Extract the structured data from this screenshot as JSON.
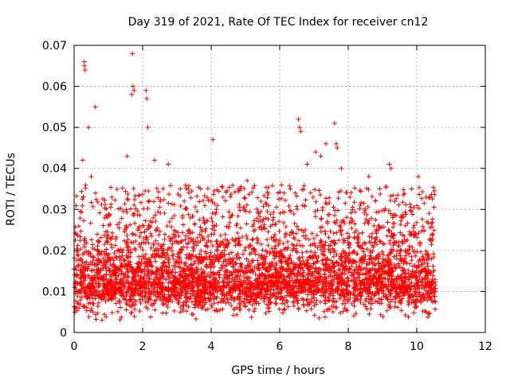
{
  "chart_data": {
    "type": "scatter",
    "title": "Day 319 of 2021, Rate Of TEC Index for receiver cn12",
    "xlabel": "GPS time / hours",
    "ylabel": "ROTI / TECUs",
    "xlim": [
      0,
      12
    ],
    "ylim": [
      0,
      0.07
    ],
    "xticks": [
      "0",
      "2",
      "4",
      "6",
      "8",
      "10",
      "12"
    ],
    "yticks": [
      "0",
      "0.01",
      "0.02",
      "0.03",
      "0.04",
      "0.05",
      "0.06",
      "0.07"
    ],
    "grid": true,
    "marker": "plus",
    "series": [
      {
        "name": "ROTI cn12",
        "color": "#ff0000",
        "x_range": [
          0.0,
          10.55
        ],
        "typical_band": [
          0.005,
          0.03
        ],
        "x": [
          0.3,
          0.3,
          0.32,
          0.62,
          0.42,
          1.7,
          1.72,
          1.75,
          1.68,
          2.1,
          2.12,
          2.15,
          6.55,
          6.58,
          6.62,
          7.6,
          7.65,
          7.68,
          9.2,
          9.25,
          10.05,
          0.25,
          0.5,
          1.1,
          1.55,
          2.35,
          2.75,
          3.1,
          3.35,
          4.05,
          4.15,
          4.55,
          5.05,
          5.45,
          5.95,
          6.05,
          6.45,
          6.8,
          7.05,
          7.2,
          7.35,
          7.8,
          8.05,
          8.35,
          8.6,
          8.75,
          8.9,
          9.55,
          9.85,
          10.3
        ],
        "y": [
          0.066,
          0.065,
          0.064,
          0.055,
          0.05,
          0.068,
          0.06,
          0.059,
          0.058,
          0.059,
          0.057,
          0.05,
          0.052,
          0.05,
          0.049,
          0.051,
          0.046,
          0.045,
          0.041,
          0.04,
          0.038,
          0.042,
          0.038,
          0.033,
          0.043,
          0.042,
          0.041,
          0.035,
          0.034,
          0.047,
          0.03,
          0.028,
          0.037,
          0.032,
          0.034,
          0.036,
          0.034,
          0.041,
          0.044,
          0.043,
          0.046,
          0.04,
          0.033,
          0.031,
          0.038,
          0.026,
          0.026,
          0.028,
          0.035,
          0.027
        ]
      }
    ]
  }
}
